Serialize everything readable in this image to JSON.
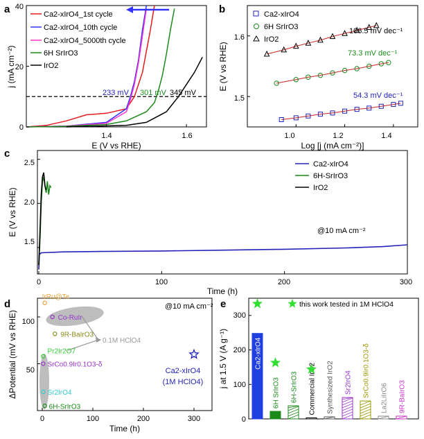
{
  "panels": {
    "a": {
      "letter": "a",
      "xlabel": "E (V vs RHE)",
      "ylabel": "j (mA cm⁻²)",
      "xticks": [
        "1.4",
        "1.6"
      ],
      "yticks": [
        "0",
        "20",
        "40"
      ],
      "legend": [
        {
          "label": "Ca2-xIrO4_1st cycle",
          "color": "#e41a1c"
        },
        {
          "label": "Ca2-xIrO4_10th cycle",
          "color": "#3333ff"
        },
        {
          "label": "Ca2-xIrO4_5000th cycle",
          "color": "#ff33cc"
        },
        {
          "label": "6H SrIrO3",
          "color": "#1a8a1a"
        },
        {
          "label": "IrO2",
          "color": "#000000"
        }
      ],
      "annotations": [
        "233 mV",
        "301 mV",
        "345 mV"
      ]
    },
    "b": {
      "letter": "b",
      "xlabel": "Log [j (mA cm⁻²)]",
      "ylabel": "E (V vs RHE)",
      "xticks": [
        "1.0",
        "1.2",
        "1.4"
      ],
      "yticks": [
        "1.5",
        "1.6"
      ],
      "legend": [
        {
          "label": "Ca2-xIrO4",
          "color": "#2222bb"
        },
        {
          "label": "6H SrIrO3",
          "color": "#1a8a1a"
        },
        {
          "label": "IrO2",
          "color": "#000000"
        }
      ],
      "annotations": [
        "106.5 mV dec⁻¹",
        "73.3 mV dec⁻¹",
        "54.3 mV dec⁻¹"
      ]
    },
    "c": {
      "letter": "c",
      "xlabel": "Time (h)",
      "ylabel": "E (V vs RHE)",
      "xticks": [
        "0",
        "100",
        "200",
        "300"
      ],
      "yticks": [
        "1.5",
        "2.0",
        "2.5"
      ],
      "legend": [
        {
          "label": "Ca2-xIrO4",
          "color": "#2222bb"
        },
        {
          "label": "6H-SrIrO3",
          "color": "#1a8a1a"
        },
        {
          "label": "IrO2",
          "color": "#000000"
        }
      ],
      "annotation": "@10 mA cm⁻²"
    },
    "d": {
      "letter": "d",
      "xlabel": "Time (h)",
      "ylabel": "ΔPotential (mV vs RHE)",
      "xticks": [
        "0",
        "100",
        "200",
        "300"
      ],
      "yticks": [
        "50",
        "100"
      ],
      "annotation": "@10 mA cm⁻²",
      "acid_label": "0.1M HClO4",
      "this_work_label": "Ca2-xIrO4",
      "this_work_sub": "(1M HClO4)"
    },
    "e": {
      "letter": "e",
      "ylabel": "j at 1.5 V (A g⁻¹)",
      "yticks": [
        "0",
        "100",
        "200",
        "300"
      ],
      "legend": "this work tested in 1M HClO4"
    }
  },
  "chart_data": [
    {
      "panel": "a",
      "type": "line",
      "xlim": [
        1.2,
        1.65
      ],
      "ylim": [
        0,
        40
      ],
      "series": [
        {
          "name": "Ca2-xIrO4_1st cycle",
          "color": "#e41a1c",
          "x": [
            1.2,
            1.25,
            1.3,
            1.35,
            1.4,
            1.45,
            1.47,
            1.49,
            1.51,
            1.52
          ],
          "y": [
            0,
            0.5,
            2,
            4,
            4.5,
            6,
            10,
            18,
            32,
            40
          ]
        },
        {
          "name": "Ca2-xIrO4_10th cycle",
          "color": "#3333ff",
          "x": [
            1.2,
            1.3,
            1.4,
            1.45,
            1.46,
            1.47,
            1.48,
            1.49,
            1.5
          ],
          "y": [
            0,
            0.3,
            1.5,
            6,
            10,
            15,
            22,
            32,
            40
          ]
        },
        {
          "name": "Ca2-xIrO4_5000th cycle",
          "color": "#ff33cc",
          "x": [
            1.2,
            1.3,
            1.4,
            1.45,
            1.46,
            1.47,
            1.48,
            1.49,
            1.5
          ],
          "y": [
            0,
            0.3,
            1.2,
            5,
            9,
            14,
            21,
            30,
            39
          ]
        },
        {
          "name": "6H SrIrO3",
          "color": "#1a8a1a",
          "x": [
            1.2,
            1.3,
            1.4,
            1.45,
            1.5,
            1.52,
            1.53,
            1.54,
            1.55,
            1.56,
            1.57
          ],
          "y": [
            0,
            0.2,
            0.8,
            2,
            5,
            8,
            12,
            17,
            24,
            32,
            39
          ]
        },
        {
          "name": "IrO2",
          "color": "#000000",
          "x": [
            1.3,
            1.45,
            1.5,
            1.55,
            1.58,
            1.6,
            1.62,
            1.64
          ],
          "y": [
            0,
            0.5,
            1.5,
            5,
            10,
            14,
            18,
            23
          ]
        }
      ],
      "reference_y": 10
    },
    {
      "panel": "b",
      "type": "scatter",
      "xlim": [
        0.8,
        1.5
      ],
      "ylim": [
        1.45,
        1.65
      ],
      "series": [
        {
          "name": "IrO2",
          "marker": "triangle",
          "color": "#000000",
          "x": [
            0.88,
            0.95,
            1.0,
            1.05,
            1.1,
            1.15,
            1.2,
            1.25,
            1.3,
            1.33
          ],
          "y": [
            1.57,
            1.577,
            1.583,
            1.588,
            1.593,
            1.599,
            1.604,
            1.609,
            1.614,
            1.617
          ]
        },
        {
          "name": "6H SrIrO3",
          "marker": "circle",
          "color": "#1a8a1a",
          "x": [
            0.92,
            1.0,
            1.05,
            1.1,
            1.15,
            1.2,
            1.25,
            1.3,
            1.35,
            1.38
          ],
          "y": [
            1.522,
            1.528,
            1.532,
            1.535,
            1.539,
            1.543,
            1.546,
            1.55,
            1.554,
            1.556
          ]
        },
        {
          "name": "Ca2-xIrO4",
          "marker": "square",
          "color": "#2222bb",
          "x": [
            0.94,
            1.0,
            1.05,
            1.1,
            1.15,
            1.2,
            1.25,
            1.3,
            1.35,
            1.4,
            1.43
          ],
          "y": [
            1.462,
            1.465,
            1.468,
            1.471,
            1.473,
            1.476,
            1.479,
            1.481,
            1.484,
            1.487,
            1.489
          ]
        }
      ]
    },
    {
      "panel": "c",
      "type": "line",
      "xlim": [
        0,
        300
      ],
      "ylim": [
        1.2,
        2.6
      ],
      "series": [
        {
          "name": "Ca2-xIrO4",
          "color": "#2222bb",
          "x": [
            0,
            0.5,
            2,
            20,
            50,
            100,
            150,
            200,
            250,
            280,
            300
          ],
          "y": [
            1.25,
            1.42,
            1.44,
            1.45,
            1.455,
            1.46,
            1.47,
            1.48,
            1.495,
            1.51,
            1.53
          ]
        },
        {
          "name": "6H-SrIrO3",
          "color": "#1a8a1a",
          "x": [
            0,
            1,
            2,
            3,
            4,
            5,
            6,
            7,
            8,
            9,
            10
          ],
          "y": [
            1.3,
            1.6,
            2.0,
            2.25,
            2.3,
            2.2,
            2.12,
            2.25,
            2.1,
            2.2,
            2.18
          ]
        },
        {
          "name": "IrO2",
          "color": "#000000",
          "x": [
            0,
            1,
            2,
            3,
            4,
            5,
            6
          ],
          "y": [
            1.3,
            1.7,
            2.1,
            2.3,
            2.35,
            2.2,
            2.15
          ]
        }
      ]
    },
    {
      "panel": "d",
      "type": "scatter",
      "xlim": [
        -10,
        320
      ],
      "ylim": [
        0,
        120
      ],
      "points": [
        {
          "label": "IrRu@Te",
          "x": 5,
          "y": 115,
          "color": "#e8a33a"
        },
        {
          "label": "Co-RuIr",
          "x": 20,
          "y": 100,
          "color": "#9933cc"
        },
        {
          "label": "9R-BaIrO3",
          "x": 25,
          "y": 82,
          "color": "#8a8a1a"
        },
        {
          "label": "Pr2Ir2O7",
          "x": 2,
          "y": 58,
          "color": "#33cc33"
        },
        {
          "label": "SrCo0.9Ir0.1O3-δ",
          "x": 2,
          "y": 50,
          "color": "#9933cc"
        },
        {
          "label": "Sr2IrO4",
          "x": 2,
          "y": 20,
          "color": "#33cccc"
        },
        {
          "label": "6H-SrIrO3",
          "x": 5,
          "y": 5,
          "color": "#1a8a1a"
        },
        {
          "label": "Ca2-xIrO4",
          "x": 300,
          "y": 60,
          "color": "#2222bb"
        }
      ]
    },
    {
      "panel": "e",
      "type": "bar",
      "ylim": [
        0,
        350
      ],
      "categories": [
        "Ca2-xIrO4",
        "6H SrIrO3",
        "6H-SrIrO3",
        "Commercial IrO2",
        "Synthesized IrO2",
        "Sr2IrO4",
        "SrCo0.9Ir0.1O3-δ",
        "La2LiIrO6",
        "9R-BaIrO3"
      ],
      "values": [
        248,
        22,
        38,
        3,
        6,
        62,
        52,
        8,
        8
      ],
      "colors": [
        "#1f3fe0",
        "#1a8a1a",
        "#1a8a1a",
        "#000000",
        "#555555",
        "#9933cc",
        "#999900",
        "#888888",
        "#cc33cc"
      ],
      "this_work": [
        true,
        true,
        false,
        true,
        false,
        false,
        false,
        false,
        false
      ]
    }
  ]
}
